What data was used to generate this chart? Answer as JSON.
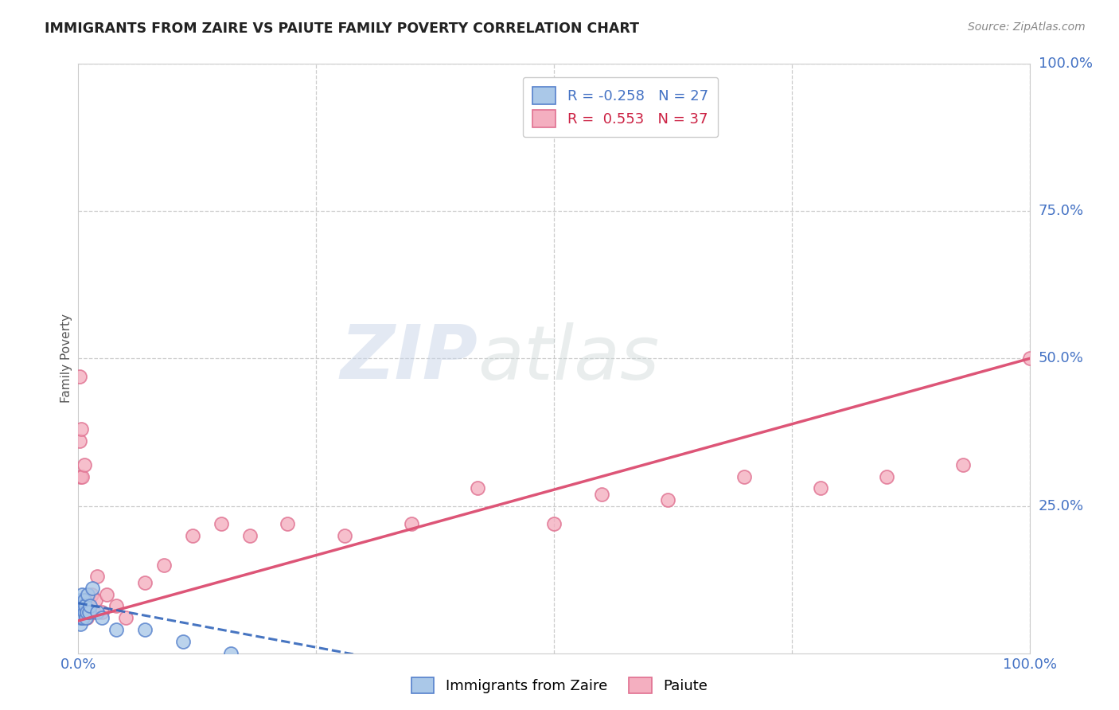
{
  "title": "IMMIGRANTS FROM ZAIRE VS PAIUTE FAMILY POVERTY CORRELATION CHART",
  "source": "Source: ZipAtlas.com",
  "ylabel": "Family Poverty",
  "xlim": [
    0,
    1
  ],
  "ylim": [
    0,
    1
  ],
  "grid_yticks": [
    0.25,
    0.5,
    0.75,
    1.0
  ],
  "grid_xticks": [
    0.25,
    0.5,
    0.75,
    1.0
  ],
  "right_ytick_labels": [
    "25.0%",
    "50.0%",
    "75.0%",
    "100.0%"
  ],
  "grid_color": "#cccccc",
  "background_color": "#ffffff",
  "watermark_text": "ZIPatlas",
  "legend_R_blue": "-0.258",
  "legend_N_blue": "27",
  "legend_R_pink": "0.553",
  "legend_N_pink": "37",
  "blue_fill": "#aac8e8",
  "blue_edge": "#5580cc",
  "pink_fill": "#f4afc0",
  "pink_edge": "#e07090",
  "blue_line_color": "#3366bb",
  "pink_line_color": "#dd5577",
  "axis_text_color": "#4472c4",
  "title_color": "#222222",
  "source_color": "#888888",
  "blue_x": [
    0.001,
    0.001,
    0.001,
    0.002,
    0.002,
    0.002,
    0.003,
    0.003,
    0.004,
    0.004,
    0.005,
    0.005,
    0.006,
    0.006,
    0.007,
    0.008,
    0.009,
    0.01,
    0.011,
    0.012,
    0.015,
    0.02,
    0.025,
    0.04,
    0.07,
    0.11,
    0.16
  ],
  "blue_y": [
    0.06,
    0.07,
    0.08,
    0.05,
    0.07,
    0.09,
    0.06,
    0.08,
    0.07,
    0.1,
    0.06,
    0.08,
    0.07,
    0.09,
    0.08,
    0.06,
    0.07,
    0.1,
    0.07,
    0.08,
    0.11,
    0.07,
    0.06,
    0.04,
    0.04,
    0.02,
    0.0
  ],
  "pink_x": [
    0.001,
    0.001,
    0.002,
    0.003,
    0.004,
    0.005,
    0.006,
    0.007,
    0.008,
    0.009,
    0.01,
    0.012,
    0.014,
    0.016,
    0.018,
    0.02,
    0.025,
    0.03,
    0.04,
    0.05,
    0.07,
    0.09,
    0.12,
    0.15,
    0.18,
    0.22,
    0.28,
    0.35,
    0.42,
    0.5,
    0.55,
    0.62,
    0.7,
    0.78,
    0.85,
    0.93,
    1.0
  ],
  "pink_y": [
    0.47,
    0.36,
    0.3,
    0.38,
    0.3,
    0.07,
    0.32,
    0.08,
    0.09,
    0.06,
    0.08,
    0.07,
    0.1,
    0.07,
    0.09,
    0.13,
    0.07,
    0.1,
    0.08,
    0.06,
    0.12,
    0.15,
    0.2,
    0.22,
    0.2,
    0.22,
    0.2,
    0.22,
    0.28,
    0.22,
    0.27,
    0.26,
    0.3,
    0.28,
    0.3,
    0.32,
    0.5
  ],
  "pink_line_x0": 0.0,
  "pink_line_y0": 0.055,
  "pink_line_x1": 1.0,
  "pink_line_y1": 0.5,
  "blue_line_x0": 0.0,
  "blue_line_y0": 0.085,
  "blue_line_x1": 0.35,
  "blue_line_y1": -0.02
}
